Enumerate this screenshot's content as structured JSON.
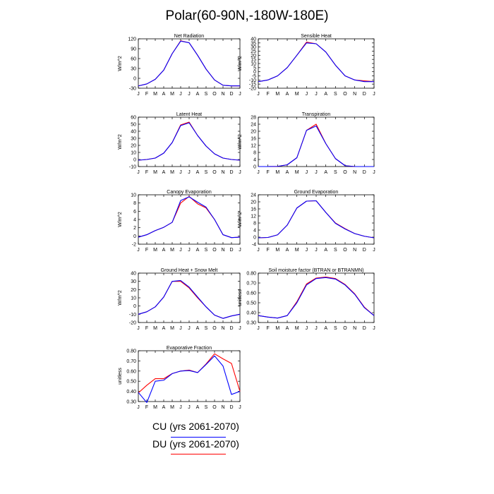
{
  "page": {
    "title": "Polar(60-90N,-180W-180E)"
  },
  "colors": {
    "cu": "#0000ff",
    "du": "#ff0000",
    "axis": "#000000"
  },
  "legend": {
    "items": [
      {
        "label": "CU (yrs 2061-2070)",
        "color": "#0000ff"
      },
      {
        "label": "DU (yrs 2061-2070)",
        "color": "#ff0000"
      }
    ]
  },
  "chart_data": [
    {
      "type": "line",
      "title": "Net Radiation",
      "ylabel": "W/m^2",
      "categories": [
        "J",
        "F",
        "M",
        "A",
        "M",
        "J",
        "J",
        "A",
        "S",
        "O",
        "N",
        "D",
        "J"
      ],
      "ylim": [
        -30,
        120
      ],
      "yticks": [
        -30,
        0,
        30,
        60,
        90,
        120
      ],
      "yticklabels": [
        "-30",
        "0",
        "30",
        "60",
        "90",
        "120"
      ],
      "series": [
        {
          "name": "CU (yrs 2061-2070)",
          "values": [
            -23,
            -17,
            -3,
            25,
            75,
            113,
            108,
            70,
            28,
            -5,
            -21,
            -23,
            -23
          ]
        },
        {
          "name": "DU (yrs 2061-2070)",
          "values": [
            -23,
            -17,
            -3,
            25,
            75,
            114,
            108,
            70,
            28,
            -5,
            -21,
            -23,
            -23
          ]
        }
      ]
    },
    {
      "type": "line",
      "title": "Sensible Heat",
      "ylabel": "W/m^2",
      "categories": [
        "J",
        "F",
        "M",
        "A",
        "M",
        "J",
        "J",
        "A",
        "S",
        "O",
        "N",
        "D",
        "J"
      ],
      "ylim": [
        -20,
        40
      ],
      "yticks": [
        -20,
        -15,
        -10,
        -5,
        0,
        5,
        10,
        15,
        20,
        25,
        30,
        35,
        40
      ],
      "yticklabels": [
        "-20",
        "-15",
        "-10",
        "-5",
        "0",
        "5",
        "10",
        "15",
        "20",
        "25",
        "30",
        "35",
        "40"
      ],
      "series": [
        {
          "name": "CU (yrs 2061-2070)",
          "values": [
            -12,
            -10,
            -5,
            5,
            20,
            35,
            34,
            24,
            8,
            -5,
            -10,
            -12,
            -12
          ]
        },
        {
          "name": "DU (yrs 2061-2070)",
          "values": [
            -12,
            -10,
            -5,
            5,
            20,
            36,
            34,
            24,
            8,
            -5,
            -10,
            -11,
            -12
          ]
        }
      ]
    },
    {
      "type": "line",
      "title": "Latent Heat",
      "ylabel": "W/m^2",
      "categories": [
        "J",
        "F",
        "M",
        "A",
        "M",
        "J",
        "J",
        "A",
        "S",
        "O",
        "N",
        "D",
        "J"
      ],
      "ylim": [
        -10,
        60
      ],
      "yticks": [
        -10,
        0,
        10,
        20,
        30,
        40,
        50,
        60
      ],
      "yticklabels": [
        "-10",
        "0",
        "10",
        "20",
        "30",
        "40",
        "50",
        "60"
      ],
      "series": [
        {
          "name": "CU (yrs 2061-2070)",
          "values": [
            -1,
            0,
            2,
            9,
            24,
            48,
            52,
            34,
            19,
            8,
            2,
            0,
            -1
          ]
        },
        {
          "name": "DU (yrs 2061-2070)",
          "values": [
            -1,
            0,
            2,
            9,
            24,
            49,
            53,
            34,
            19,
            8,
            2,
            0,
            -1
          ]
        }
      ]
    },
    {
      "type": "line",
      "title": "Transpiration",
      "ylabel": "W/m^2",
      "categories": [
        "J",
        "F",
        "M",
        "A",
        "M",
        "J",
        "J",
        "A",
        "S",
        "O",
        "N",
        "D",
        "J"
      ],
      "ylim": [
        0,
        28
      ],
      "yticks": [
        0,
        4,
        8,
        12,
        16,
        20,
        24,
        28
      ],
      "yticklabels": [
        "0",
        "4",
        "8",
        "12",
        "16",
        "20",
        "24",
        "28"
      ],
      "series": [
        {
          "name": "CU (yrs 2061-2070)",
          "values": [
            0,
            0,
            0.1,
            1,
            5,
            20.5,
            23,
            13,
            4.5,
            0.5,
            0,
            0,
            0
          ]
        },
        {
          "name": "DU (yrs 2061-2070)",
          "values": [
            0,
            0,
            0.1,
            1,
            5,
            20.5,
            24,
            13,
            4.5,
            0.5,
            0,
            0,
            0
          ]
        }
      ]
    },
    {
      "type": "line",
      "title": "Canopy Evaporation",
      "ylabel": "W/m^2",
      "categories": [
        "J",
        "F",
        "M",
        "A",
        "M",
        "J",
        "J",
        "A",
        "S",
        "O",
        "N",
        "D",
        "J"
      ],
      "ylim": [
        -2,
        10
      ],
      "yticks": [
        -2,
        0,
        2,
        4,
        6,
        8,
        10
      ],
      "yticklabels": [
        "-2",
        "0",
        "2",
        "4",
        "6",
        "8",
        "10"
      ],
      "series": [
        {
          "name": "CU (yrs 2061-2070)",
          "values": [
            -0.3,
            0.3,
            1.3,
            2.1,
            3.3,
            8.6,
            9.5,
            8.2,
            7.0,
            4.0,
            0.3,
            -0.4,
            -0.3
          ]
        },
        {
          "name": "DU (yrs 2061-2070)",
          "values": [
            -0.3,
            0.3,
            1.3,
            2.1,
            3.3,
            8.0,
            9.6,
            7.8,
            6.8,
            4.0,
            0.3,
            -0.4,
            -0.3
          ]
        }
      ]
    },
    {
      "type": "line",
      "title": "Ground Evaporation",
      "ylabel": "W/m^2",
      "categories": [
        "J",
        "F",
        "M",
        "A",
        "M",
        "J",
        "J",
        "A",
        "S",
        "O",
        "N",
        "D",
        "J"
      ],
      "ylim": [
        -4,
        24
      ],
      "yticks": [
        -4,
        0,
        4,
        8,
        12,
        16,
        20,
        24
      ],
      "yticklabels": [
        "-4",
        "0",
        "4",
        "8",
        "12",
        "16",
        "20",
        "24"
      ],
      "series": [
        {
          "name": "CU (yrs 2061-2070)",
          "values": [
            -0.4,
            -0.2,
            1.3,
            6.8,
            16.5,
            20.4,
            20.6,
            14.0,
            7.8,
            4.6,
            2.0,
            0.5,
            -0.4
          ]
        },
        {
          "name": "DU (yrs 2061-2070)",
          "values": [
            -0.4,
            -0.2,
            1.3,
            6.8,
            16.5,
            20.4,
            20.6,
            14.0,
            8.0,
            4.8,
            2.0,
            0.5,
            -0.4
          ]
        }
      ]
    },
    {
      "type": "line",
      "title": "Ground Heat + Snow Melt",
      "ylabel": "W/m^2",
      "categories": [
        "J",
        "F",
        "M",
        "A",
        "M",
        "J",
        "J",
        "A",
        "S",
        "O",
        "N",
        "D",
        "J"
      ],
      "ylim": [
        -20,
        40
      ],
      "yticks": [
        -20,
        -10,
        0,
        10,
        20,
        30,
        40
      ],
      "yticklabels": [
        "-20",
        "-10",
        "0",
        "10",
        "20",
        "30",
        "40"
      ],
      "series": [
        {
          "name": "CU (yrs 2061-2070)",
          "values": [
            -10,
            -7,
            -1,
            11,
            30,
            31,
            23,
            11,
            -1,
            -11,
            -15,
            -12,
            -10
          ]
        },
        {
          "name": "DU (yrs 2061-2070)",
          "values": [
            -10,
            -7,
            -1,
            11,
            30,
            30,
            22,
            10,
            -1,
            -11,
            -15,
            -12,
            -10
          ]
        }
      ]
    },
    {
      "type": "line",
      "title": "Soil moisture factor (BTRAN or BTRANMN)",
      "ylabel": "unitless",
      "categories": [
        "J",
        "F",
        "M",
        "A",
        "M",
        "J",
        "J",
        "A",
        "S",
        "O",
        "N",
        "D",
        "J"
      ],
      "ylim": [
        0.3,
        0.8
      ],
      "yticks": [
        0.3,
        0.4,
        0.5,
        0.6,
        0.7,
        0.8
      ],
      "yticklabels": [
        "0.30",
        "0.40",
        "0.50",
        "0.60",
        "0.70",
        "0.80"
      ],
      "series": [
        {
          "name": "CU (yrs 2061-2070)",
          "values": [
            0.37,
            0.355,
            0.345,
            0.37,
            0.5,
            0.68,
            0.745,
            0.755,
            0.74,
            0.68,
            0.585,
            0.45,
            0.37
          ]
        },
        {
          "name": "DU (yrs 2061-2070)",
          "values": [
            0.37,
            0.355,
            0.345,
            0.37,
            0.51,
            0.69,
            0.75,
            0.76,
            0.745,
            0.685,
            0.59,
            0.455,
            0.37
          ]
        }
      ]
    },
    {
      "type": "line",
      "title": "Evaporative Fraction",
      "ylabel": "unitless",
      "categories": [
        "J",
        "F",
        "M",
        "A",
        "M",
        "J",
        "J",
        "A",
        "S",
        "O",
        "N",
        "D",
        "J"
      ],
      "ylim": [
        0.3,
        0.8
      ],
      "yticks": [
        0.3,
        0.4,
        0.5,
        0.6,
        0.7,
        0.8
      ],
      "yticklabels": [
        "0.30",
        "0.40",
        "0.50",
        "0.60",
        "0.70",
        "0.80"
      ],
      "series": [
        {
          "name": "CU (yrs 2061-2070)",
          "values": [
            0.39,
            0.29,
            0.5,
            0.51,
            0.575,
            0.6,
            0.605,
            0.585,
            0.665,
            0.75,
            0.65,
            0.37,
            0.4
          ]
        },
        {
          "name": "DU (yrs 2061-2070)",
          "values": [
            0.385,
            0.46,
            0.525,
            0.525,
            0.575,
            0.6,
            0.61,
            0.585,
            0.67,
            0.77,
            0.72,
            0.675,
            0.4
          ]
        }
      ]
    }
  ]
}
